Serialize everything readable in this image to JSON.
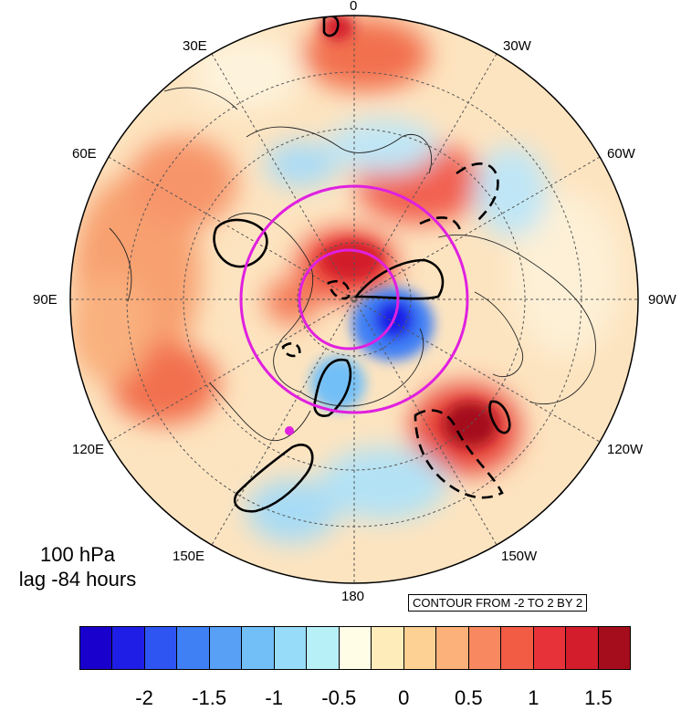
{
  "map": {
    "projection": "north-polar-stereographic",
    "longitude_labels": [
      {
        "id": "lon-0",
        "text": "0"
      },
      {
        "id": "lon-30w",
        "text": "30W"
      },
      {
        "id": "lon-60w",
        "text": "60W"
      },
      {
        "id": "lon-90w",
        "text": "90W"
      },
      {
        "id": "lon-120w",
        "text": "120W"
      },
      {
        "id": "lon-150w",
        "text": "150W"
      },
      {
        "id": "lon-180",
        "text": "180"
      },
      {
        "id": "lon-150e",
        "text": "150E"
      },
      {
        "id": "lon-120e",
        "text": "120E"
      },
      {
        "id": "lon-90e",
        "text": "90E"
      },
      {
        "id": "lon-60e",
        "text": "60E"
      },
      {
        "id": "lon-30e",
        "text": "30E"
      }
    ],
    "overlay_circle_color": "#e020e0",
    "contour_line_color": "#000000"
  },
  "title": {
    "level": "100 hPa",
    "lag": "lag -84 hours"
  },
  "contour_info": "CONTOUR FROM -2 TO 2 BY 2",
  "colorbar": {
    "colors": [
      "#1a00cc",
      "#1f1ee6",
      "#2e55f2",
      "#3f80f5",
      "#58a0f5",
      "#72bff7",
      "#97dcf8",
      "#b8f0f7",
      "#fffde6",
      "#feecba",
      "#fdd093",
      "#fcb07a",
      "#f88860",
      "#f25c45",
      "#e8323a",
      "#d31d2c",
      "#a60d1c"
    ],
    "tick_labels": [
      "-2",
      "-1.5",
      "-1",
      "-0.5",
      "0",
      "0.5",
      "1",
      "1.5"
    ]
  }
}
